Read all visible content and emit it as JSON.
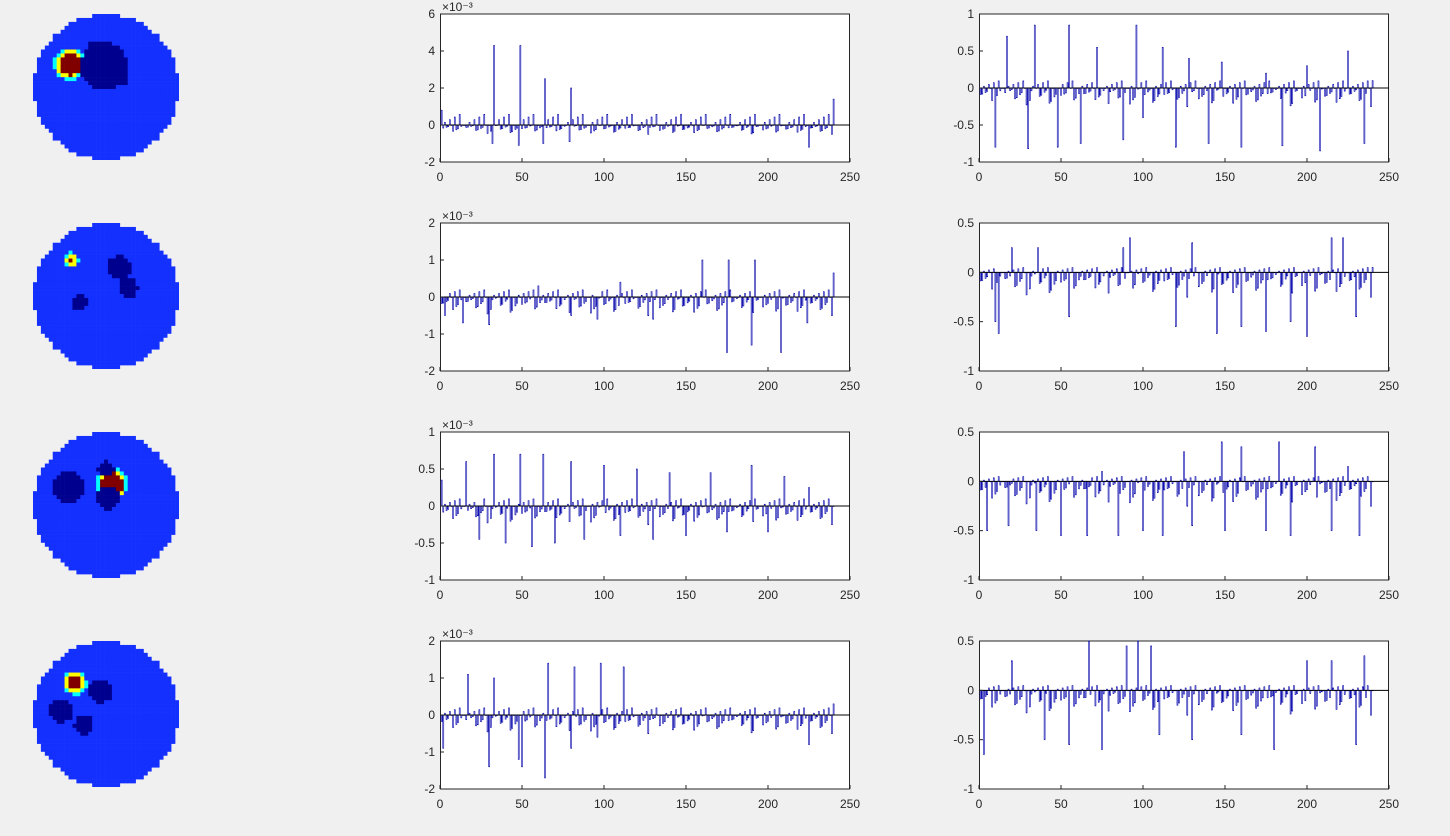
{
  "figure": {
    "background": "#f0f0f0",
    "phantom_colors": {
      "background": "#1430ff",
      "inclusion_low": "#00008f",
      "inclusion_high": "#800000",
      "edge": "#ffff00",
      "edge2": "#00ffff"
    },
    "bar_color": "#0000aa"
  },
  "chart_data": [
    {
      "type": "bar",
      "panel": "row1-left",
      "xlim": [
        0,
        250
      ],
      "ylim": [
        -2,
        6
      ],
      "xticks": [
        0,
        50,
        100,
        150,
        200,
        250
      ],
      "xtick_labels": [
        "0",
        "50",
        "100",
        "150",
        "200",
        "250"
      ],
      "yticks": [
        -2,
        0,
        2,
        4,
        6
      ],
      "ytick_labels": [
        "-2",
        "0",
        "2",
        "4",
        "6"
      ],
      "exponent_label": "×10⁻³",
      "n_bars": 240,
      "x": [
        1,
        32,
        33,
        48,
        49,
        63,
        64,
        79,
        80,
        225,
        240
      ],
      "values": [
        0.8,
        -1.0,
        4.3,
        -1.1,
        4.3,
        -1.0,
        2.5,
        -0.9,
        2.0,
        -1.2,
        1.4
      ]
    },
    {
      "type": "bar",
      "panel": "row1-right",
      "xlim": [
        0,
        250
      ],
      "ylim": [
        -1,
        1
      ],
      "xticks": [
        0,
        50,
        100,
        150,
        200,
        250
      ],
      "xtick_labels": [
        "0",
        "50",
        "100",
        "150",
        "200",
        "250"
      ],
      "yticks": [
        -1,
        -0.5,
        0,
        0.5,
        1
      ],
      "ytick_labels": [
        "-1",
        "-0.5",
        "0",
        "0.5",
        "1"
      ],
      "n_bars": 240,
      "x": [
        10,
        17,
        30,
        34,
        48,
        55,
        62,
        72,
        88,
        96,
        100,
        112,
        120,
        128,
        140,
        148,
        160,
        175,
        185,
        200,
        208,
        225,
        235,
        240
      ],
      "values": [
        -0.8,
        0.7,
        -0.82,
        0.85,
        -0.8,
        0.85,
        -0.75,
        0.55,
        -0.7,
        0.85,
        -0.4,
        0.55,
        -0.8,
        0.4,
        -0.75,
        0.35,
        -0.8,
        0.2,
        -0.78,
        0.3,
        -0.85,
        0.5,
        -0.75,
        0.1
      ]
    },
    {
      "type": "bar",
      "panel": "row2-left",
      "xlim": [
        0,
        250
      ],
      "ylim": [
        -2,
        2
      ],
      "xticks": [
        0,
        50,
        100,
        150,
        200,
        250
      ],
      "xtick_labels": [
        "0",
        "50",
        "100",
        "150",
        "200",
        "250"
      ],
      "yticks": [
        -2,
        -1,
        0,
        1,
        2
      ],
      "ytick_labels": [
        "-2",
        "-1",
        "0",
        "1",
        "2"
      ],
      "exponent_label": "×10⁻³",
      "n_bars": 240,
      "x": [
        3,
        14,
        30,
        60,
        80,
        96,
        110,
        130,
        160,
        175,
        176,
        190,
        192,
        208,
        224,
        240
      ],
      "values": [
        -0.5,
        -0.7,
        -0.75,
        0.3,
        -0.5,
        -0.6,
        0.4,
        -0.6,
        1.0,
        -1.5,
        1.0,
        -1.3,
        1.0,
        -1.5,
        -0.7,
        0.65
      ]
    },
    {
      "type": "bar",
      "panel": "row2-right",
      "xlim": [
        0,
        250
      ],
      "ylim": [
        -1,
        0.5
      ],
      "xticks": [
        0,
        50,
        100,
        150,
        200,
        250
      ],
      "xtick_labels": [
        "0",
        "50",
        "100",
        "150",
        "200",
        "250"
      ],
      "yticks": [
        -1,
        -0.5,
        0,
        0.5
      ],
      "ytick_labels": [
        "-1",
        "-0.5",
        "0",
        "0.5"
      ],
      "n_bars": 240,
      "x": [
        10,
        12,
        20,
        36,
        55,
        88,
        92,
        120,
        130,
        145,
        160,
        175,
        190,
        200,
        215,
        222,
        230,
        240
      ],
      "values": [
        -0.5,
        -0.62,
        0.25,
        0.25,
        -0.45,
        0.25,
        0.35,
        -0.55,
        0.3,
        -0.62,
        -0.55,
        -0.6,
        -0.5,
        -0.65,
        0.35,
        0.35,
        -0.45,
        0.05
      ]
    },
    {
      "type": "bar",
      "panel": "row3-left",
      "xlim": [
        0,
        250
      ],
      "ylim": [
        -1,
        1
      ],
      "xticks": [
        0,
        50,
        100,
        150,
        200,
        250
      ],
      "xtick_labels": [
        "0",
        "50",
        "100",
        "150",
        "200",
        "250"
      ],
      "yticks": [
        -1,
        -0.5,
        0,
        0.5,
        1
      ],
      "ytick_labels": [
        "-1",
        "-0.5",
        "0",
        "0.5",
        "1"
      ],
      "exponent_label": "×10⁻³",
      "n_bars": 240,
      "x": [
        1,
        16,
        24,
        33,
        40,
        49,
        56,
        63,
        70,
        80,
        88,
        100,
        110,
        120,
        130,
        140,
        150,
        165,
        175,
        190,
        200,
        210,
        225
      ],
      "values": [
        0.35,
        0.6,
        -0.45,
        0.7,
        -0.5,
        0.7,
        -0.55,
        0.7,
        -0.5,
        0.6,
        -0.45,
        0.55,
        -0.4,
        0.5,
        -0.45,
        0.45,
        -0.4,
        0.45,
        -0.35,
        0.55,
        -0.35,
        0.4,
        0.25
      ]
    },
    {
      "type": "bar",
      "panel": "row3-right",
      "xlim": [
        0,
        250
      ],
      "ylim": [
        -1,
        0.5
      ],
      "xticks": [
        0,
        50,
        100,
        150,
        200,
        250
      ],
      "xtick_labels": [
        "0",
        "50",
        "100",
        "150",
        "200",
        "250"
      ],
      "yticks": [
        -1,
        -0.5,
        0,
        0.5
      ],
      "ytick_labels": [
        "-1",
        "-0.5",
        "0",
        "0.5"
      ],
      "n_bars": 240,
      "x": [
        5,
        18,
        35,
        50,
        66,
        75,
        85,
        100,
        112,
        125,
        130,
        148,
        150,
        160,
        175,
        183,
        190,
        205,
        215,
        225,
        232
      ],
      "values": [
        -0.5,
        -0.45,
        -0.5,
        -0.55,
        -0.55,
        0.1,
        -0.55,
        -0.5,
        -0.55,
        0.3,
        -0.45,
        0.4,
        -0.5,
        0.35,
        -0.5,
        0.4,
        -0.55,
        0.35,
        -0.5,
        0.15,
        -0.55
      ]
    },
    {
      "type": "bar",
      "panel": "row4-left",
      "xlim": [
        0,
        250
      ],
      "ylim": [
        -2,
        2
      ],
      "xticks": [
        0,
        50,
        100,
        150,
        200,
        250
      ],
      "xtick_labels": [
        "0",
        "50",
        "100",
        "150",
        "200",
        "250"
      ],
      "yticks": [
        -2,
        -1,
        0,
        1,
        2
      ],
      "ytick_labels": [
        "-2",
        "-1",
        "0",
        "1",
        "2"
      ],
      "exponent_label": "×10⁻³",
      "n_bars": 240,
      "x": [
        2,
        17,
        30,
        33,
        48,
        50,
        64,
        66,
        80,
        82,
        96,
        98,
        112,
        225,
        240
      ],
      "values": [
        -0.9,
        1.1,
        -1.4,
        1.0,
        -1.2,
        -1.4,
        -1.7,
        1.4,
        -0.9,
        1.3,
        -0.6,
        1.4,
        1.3,
        -0.8,
        0.3
      ]
    },
    {
      "type": "bar",
      "panel": "row4-right",
      "xlim": [
        0,
        250
      ],
      "ylim": [
        -1,
        0.5
      ],
      "xticks": [
        0,
        50,
        100,
        150,
        200,
        250
      ],
      "xtick_labels": [
        "0",
        "50",
        "100",
        "150",
        "200",
        "250"
      ],
      "yticks": [
        -1,
        -0.5,
        0,
        0.5
      ],
      "ytick_labels": [
        "-1",
        "-0.5",
        "0",
        "0.5"
      ],
      "n_bars": 240,
      "x": [
        3,
        20,
        40,
        55,
        67,
        75,
        90,
        97,
        105,
        110,
        130,
        160,
        180,
        200,
        215,
        230,
        235
      ],
      "values": [
        -0.65,
        0.3,
        -0.5,
        -0.55,
        0.5,
        -0.6,
        0.45,
        0.5,
        0.45,
        -0.45,
        -0.5,
        -0.45,
        -0.6,
        0.3,
        0.3,
        -0.55,
        0.35
      ]
    }
  ]
}
